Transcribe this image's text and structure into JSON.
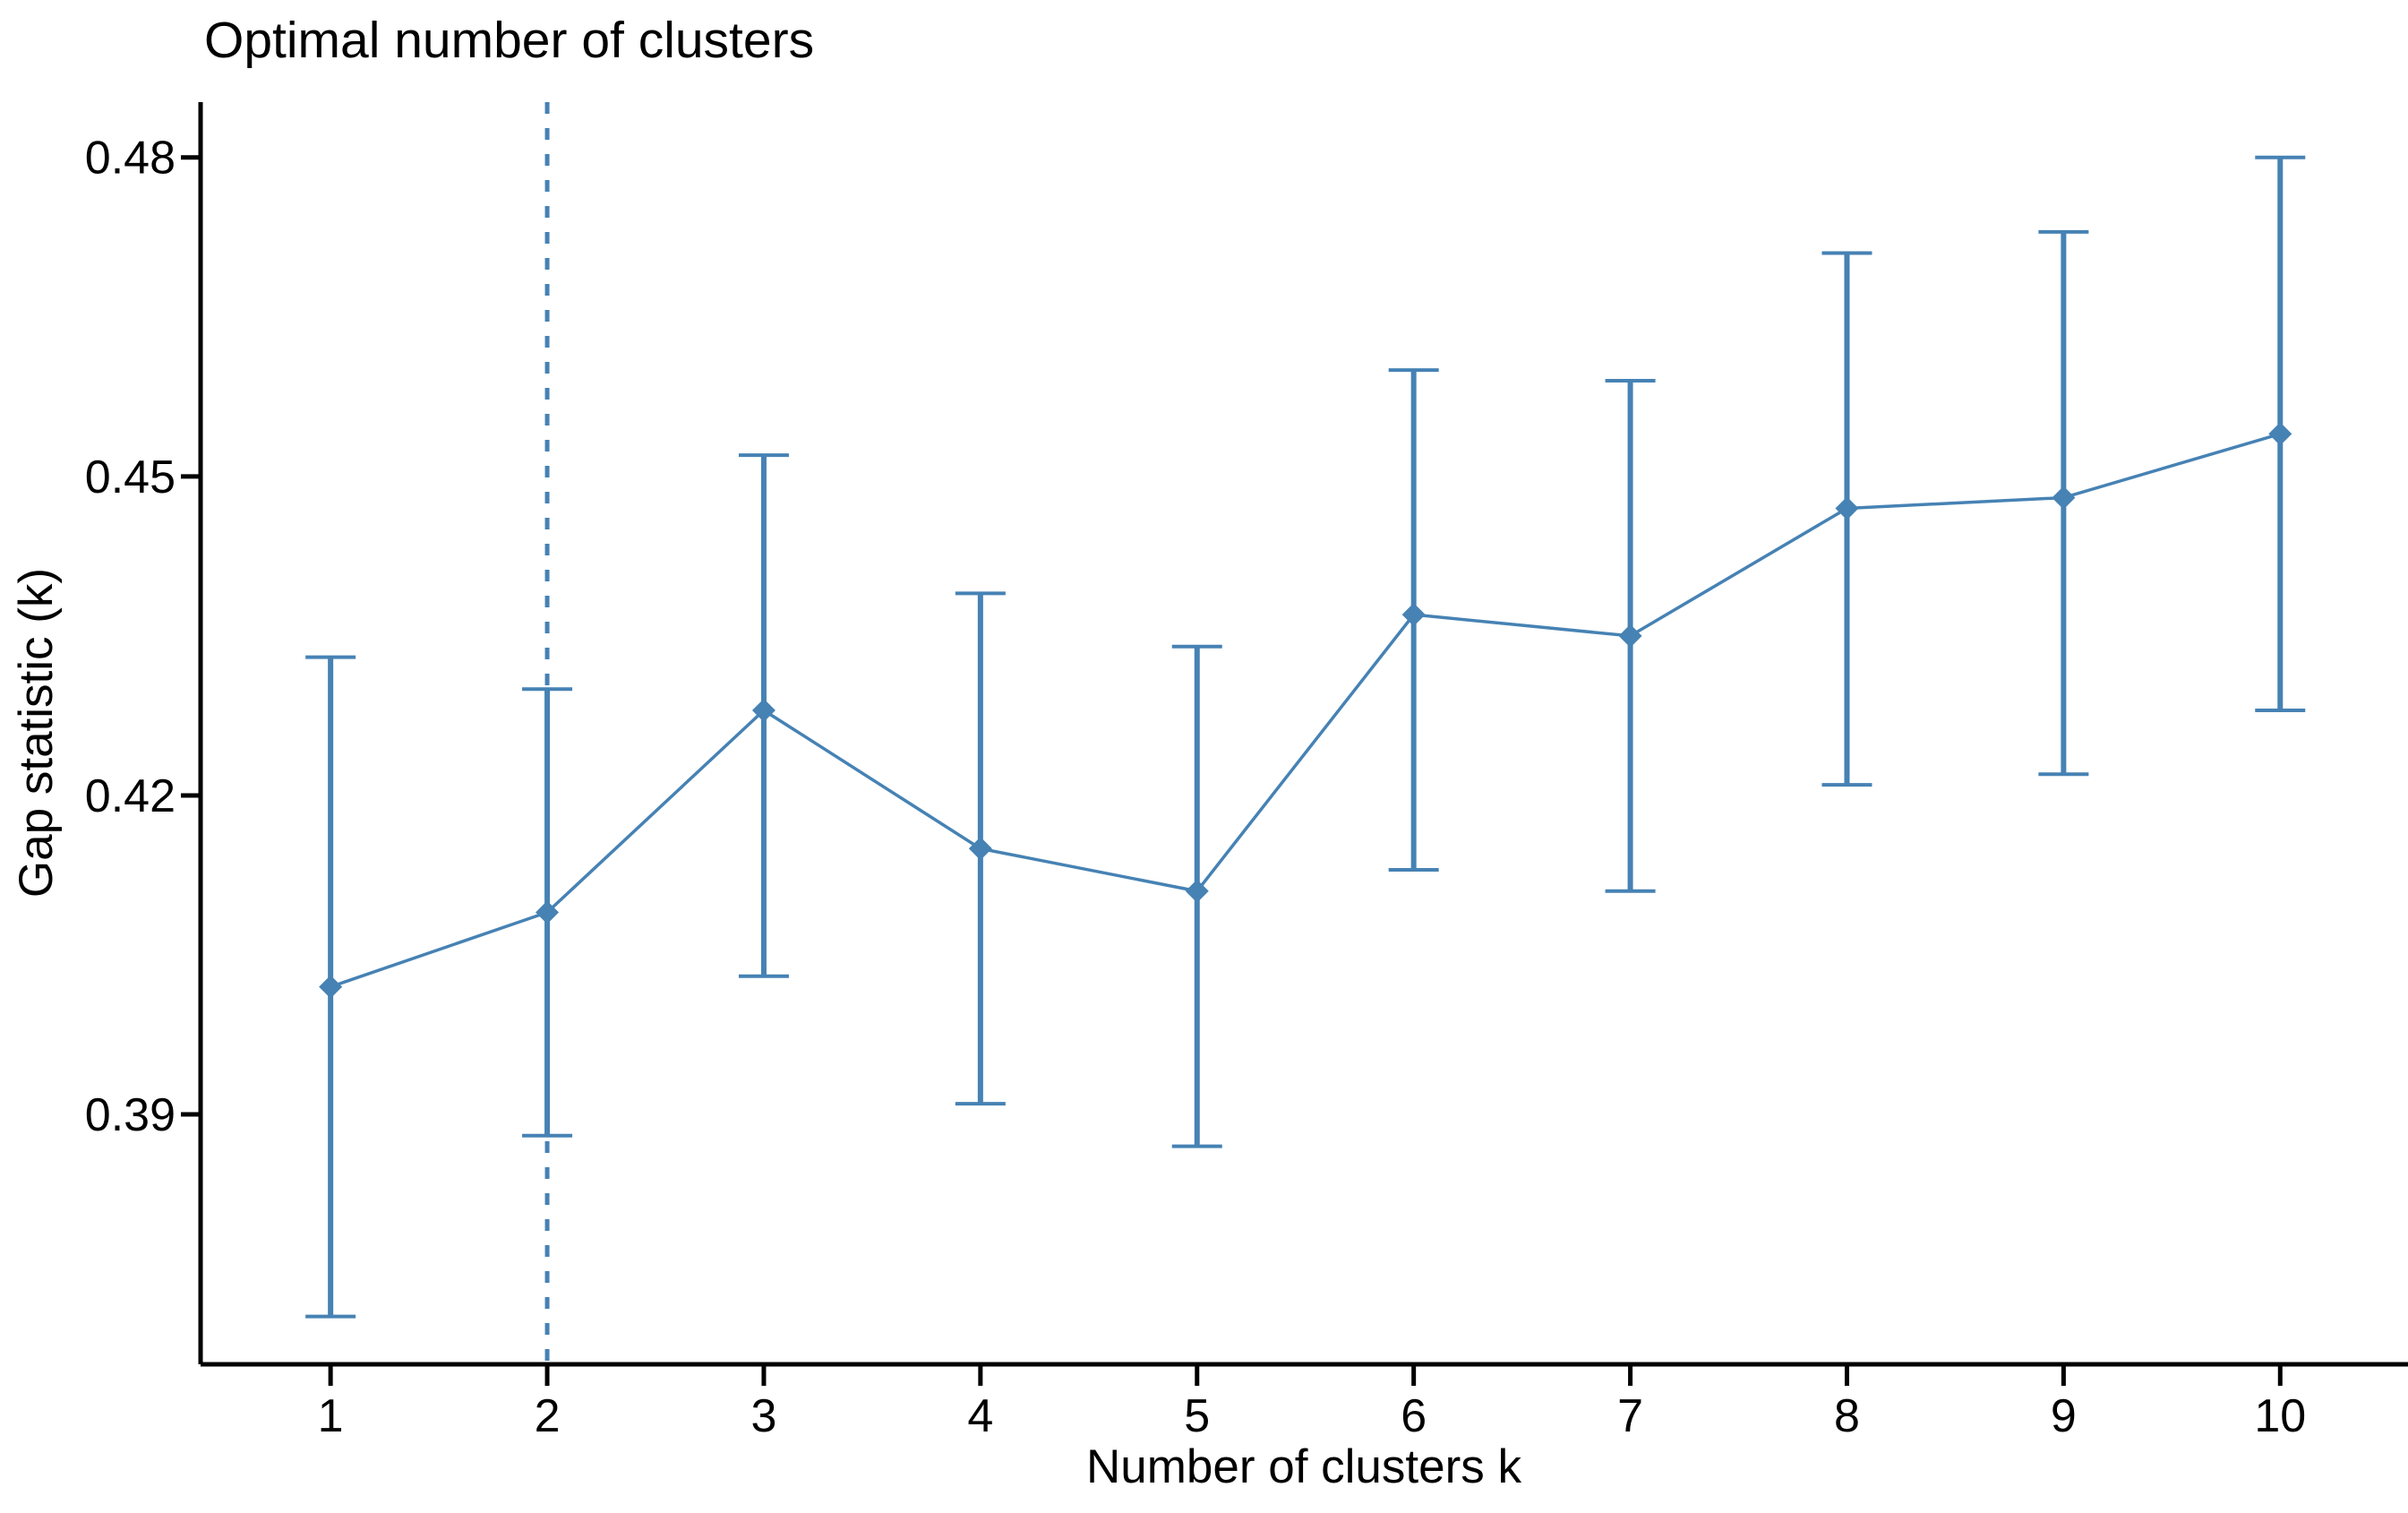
{
  "page": {
    "background": "#ffffff"
  },
  "chart": {
    "title": "Optimal number of clusters",
    "xlabel": "Number of clusters k",
    "ylabel": "Gap statistic (k)"
  },
  "chart_data": {
    "type": "line",
    "title": "Optimal number of clusters",
    "xlabel": "Number of clusters k",
    "ylabel": "Gap statistic (k)",
    "x": [
      1,
      2,
      3,
      4,
      5,
      6,
      7,
      8,
      9,
      10
    ],
    "x_tick_labels": [
      "1",
      "2",
      "3",
      "4",
      "5",
      "6",
      "7",
      "8",
      "9",
      "10"
    ],
    "y_ticks": [
      0.39,
      0.42,
      0.45,
      0.48
    ],
    "y_tick_labels": [
      "0.39",
      "0.42",
      "0.45",
      "0.48"
    ],
    "xlim": [
      0.4,
      10.59
    ],
    "ylim": [
      0.3665,
      0.4852
    ],
    "grid": false,
    "legend_position": "none",
    "series": [
      {
        "name": "Gap statistic",
        "marker": "diamond",
        "values": [
          0.402,
          0.409,
          0.428,
          0.415,
          0.411,
          0.437,
          0.435,
          0.447,
          0.448,
          0.454
        ],
        "error_low": [
          0.371,
          0.388,
          0.403,
          0.391,
          0.387,
          0.413,
          0.411,
          0.421,
          0.422,
          0.428
        ],
        "error_high": [
          0.433,
          0.43,
          0.452,
          0.439,
          0.434,
          0.46,
          0.459,
          0.471,
          0.473,
          0.48
        ]
      }
    ],
    "vline": {
      "x": 2,
      "style": "dashed"
    },
    "colors": {
      "accent": "#4682B4",
      "axis": "#000000",
      "text": "#000000"
    }
  }
}
